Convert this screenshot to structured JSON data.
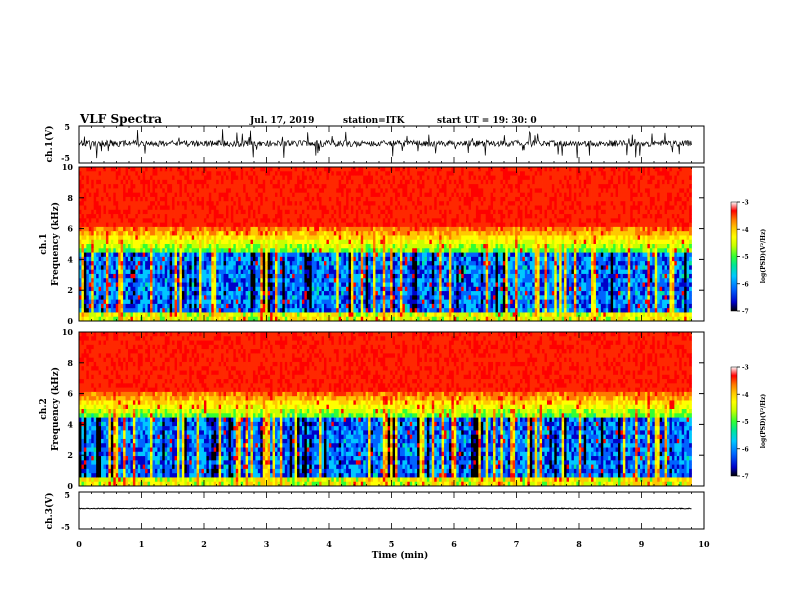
{
  "header": {
    "title": "VLF Spectra",
    "date": "Jul. 17, 2019",
    "station": "station=ITK",
    "start": "start UT =  19: 30: 0"
  },
  "chart_data": {
    "type": "heatmap",
    "xlabel": "Time (min)",
    "xlim": [
      0,
      10
    ],
    "x_ticks": [
      "0",
      "1",
      "2",
      "3",
      "4",
      "5",
      "6",
      "7",
      "8",
      "9",
      "10"
    ],
    "panels": [
      {
        "id": "ch1-wave",
        "ylabel": "ch.1(V)",
        "ylim": [
          -5,
          5
        ],
        "y_ticks": [
          "5",
          "-5"
        ]
      },
      {
        "id": "ch1-spec",
        "ylabel": "ch.1\nFrequency (kHz)",
        "ylim": [
          0,
          10
        ],
        "y_ticks": [
          "0",
          "2",
          "4",
          "6",
          "8",
          "10"
        ],
        "colorbar": {
          "label": "log(PSD)(V²/Hz)",
          "range": [
            -7,
            -3
          ],
          "ticks": [
            "-3",
            "-4",
            "-5",
            "-6",
            "-7"
          ]
        }
      },
      {
        "id": "ch2-spec",
        "ylabel": "ch.2\nFrequency (kHz)",
        "ylim": [
          0,
          10
        ],
        "y_ticks": [
          "0",
          "2",
          "4",
          "6",
          "8",
          "10"
        ],
        "colorbar": {
          "label": "log(PSD)(V²/Hz)",
          "range": [
            -7,
            -3
          ],
          "ticks": [
            "-3",
            "-4",
            "-5",
            "-6",
            "-7"
          ]
        }
      },
      {
        "id": "ch3-wave",
        "ylabel": "ch.3(V)",
        "ylim": [
          -5,
          5
        ],
        "y_ticks": [
          "5",
          "-5"
        ]
      }
    ],
    "data_end_min": 9.8,
    "spectral_structure": {
      "high_band_khz": [
        6,
        10
      ],
      "high_band_logpsd": -3.5,
      "transition_khz": [
        4.5,
        6
      ],
      "low_band_khz": [
        0.5,
        4.5
      ],
      "low_band_logpsd": -6.3
    },
    "colormap": [
      "#000000",
      "#0000c8",
      "#0064ff",
      "#00c8ff",
      "#00e696",
      "#32ff32",
      "#c8ff00",
      "#ffff00",
      "#ffc800",
      "#ff7800",
      "#ff2800",
      "#ff0000",
      "#ffffff"
    ]
  }
}
